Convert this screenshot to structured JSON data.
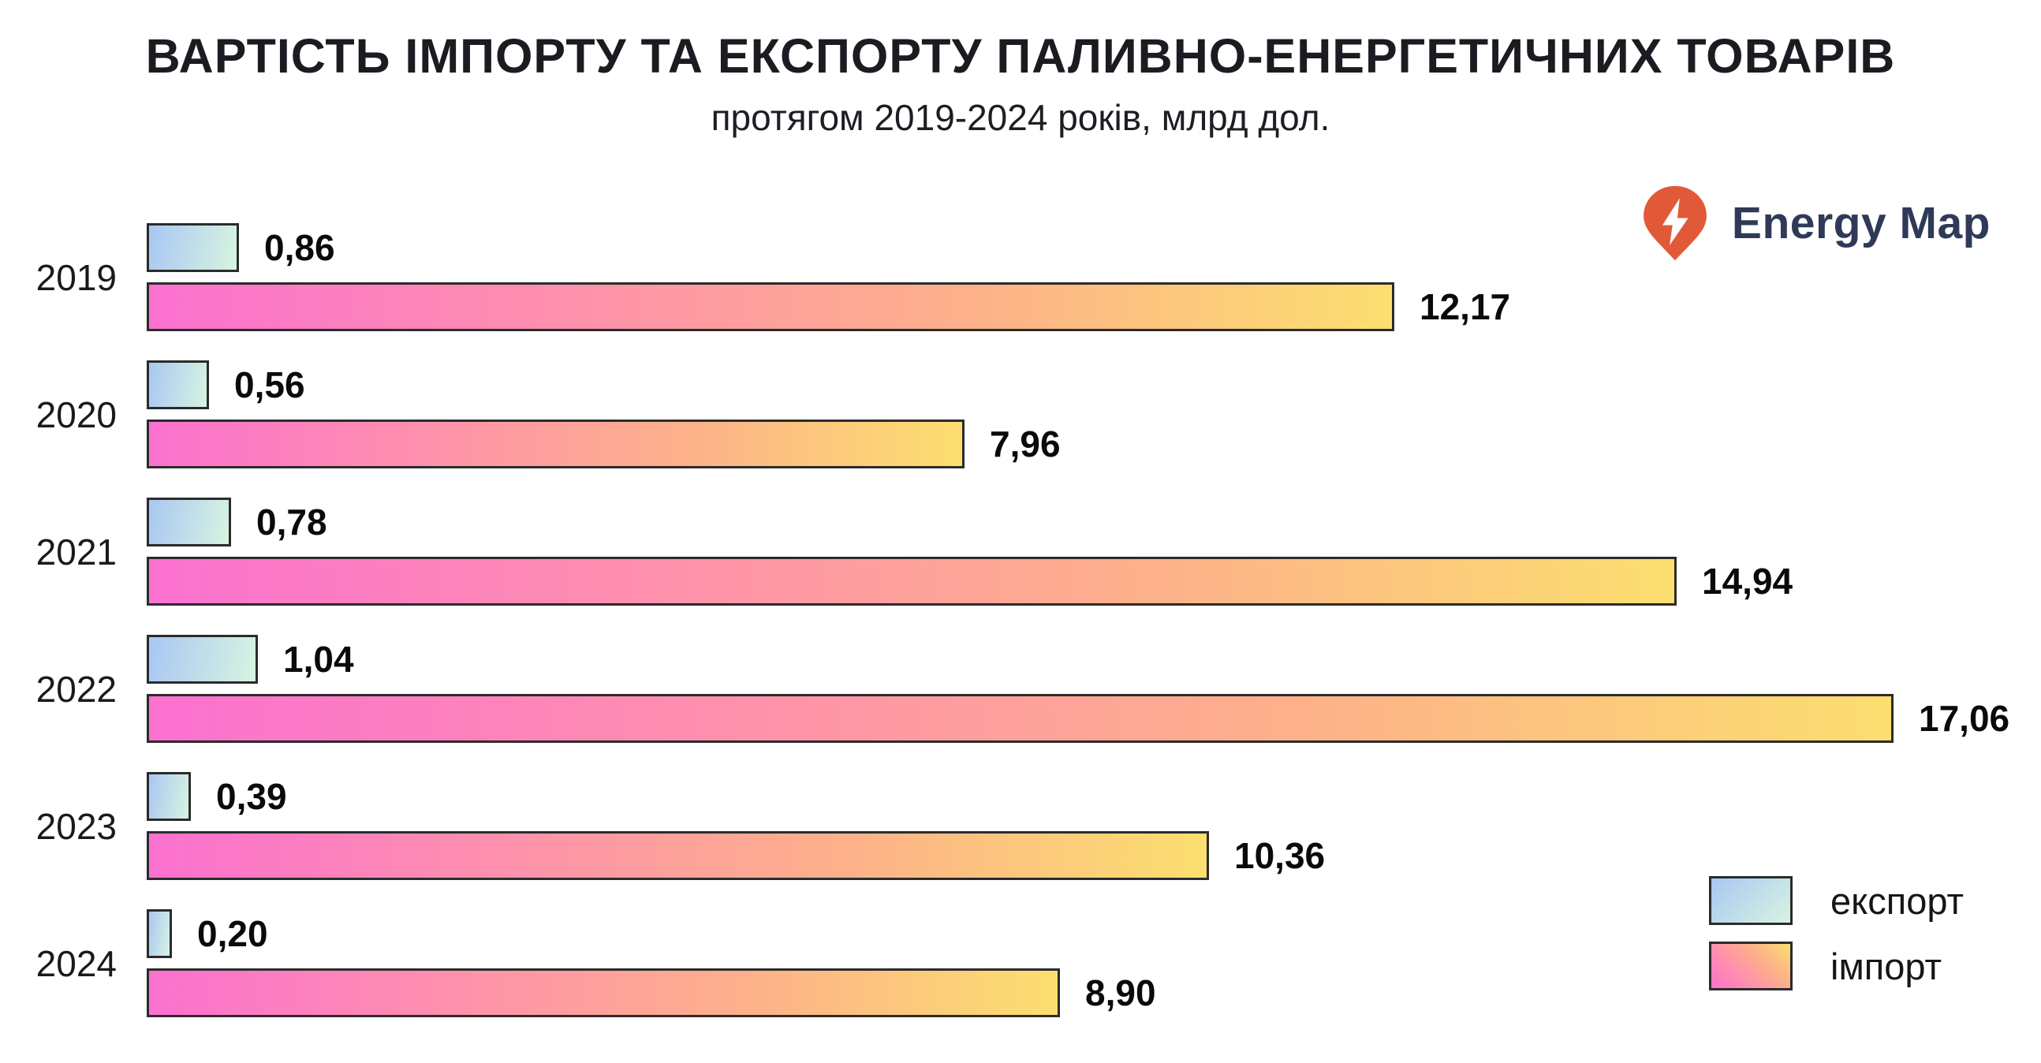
{
  "page": {
    "background": "#ffffff"
  },
  "header": {
    "title": "ВАРТІСТЬ ІМПОРТУ ТА ЕКСПОРТУ ПАЛИВНО-ЕНЕРГЕТИЧНИХ ТОВАРІВ",
    "subtitle": "протягом 2019-2024 років, млрд дол."
  },
  "logo": {
    "text": "Energy Map",
    "icon": "lightning-pin-icon",
    "pin_color": "#e2593a",
    "bolt_color": "#ffffff",
    "text_color": "#2e3a57"
  },
  "legend": {
    "position": "bottom-right",
    "items": [
      {
        "label": "експорт",
        "swatch": "export-gradient"
      },
      {
        "label": "імпорт",
        "swatch": "import-gradient"
      }
    ]
  },
  "colors": {
    "bar_border": "#2b2b2b",
    "export_gradient": [
      "#a9c7f2",
      "#d7f4e1"
    ],
    "import_gradient": [
      "#fb71d0",
      "#fe90ad",
      "#fdb289",
      "#fcdf70"
    ],
    "title_text": "#1b1b22"
  },
  "chart_data": {
    "type": "bar",
    "orientation": "horizontal",
    "title": "ВАРТІСТЬ ІМПОРТУ ТА ЕКСПОРТУ ПАЛИВНО-ЕНЕРГЕТИЧНИХ ТОВАРІВ",
    "subtitle": "протягом 2019-2024 років, млрд дол.",
    "unit": "млрд дол.",
    "categories": [
      "2019",
      "2020",
      "2021",
      "2022",
      "2023",
      "2024"
    ],
    "series": [
      {
        "name": "експорт",
        "values": [
          0.86,
          0.56,
          0.78,
          1.04,
          0.39,
          0.2
        ],
        "labels": [
          "0,86",
          "0,56",
          "0,78",
          "1,04",
          "0,39",
          "0,20"
        ]
      },
      {
        "name": "імпорт",
        "values": [
          12.17,
          7.96,
          14.94,
          17.06,
          10.36,
          8.9
        ],
        "labels": [
          "12,17",
          "7,96",
          "14,94",
          "17,06",
          "10,36",
          "8,90"
        ]
      }
    ],
    "xlim": [
      0,
      17.06
    ],
    "value_decimal_separator": ",",
    "grid": false,
    "legend_position": "bottom-right"
  }
}
